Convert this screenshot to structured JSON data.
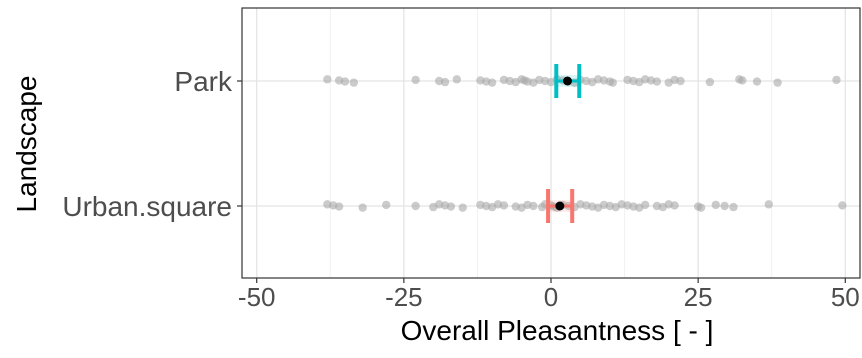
{
  "chart_data": {
    "type": "scatter",
    "xlabel": "Overall Pleasantness [ - ]",
    "ylabel": "Landscape",
    "xlim": [
      -52.5,
      52.5
    ],
    "x_ticks": [
      -50,
      -25,
      0,
      25,
      50
    ],
    "x_tick_labels": [
      "-50",
      "-25",
      "0",
      "25",
      "50"
    ],
    "categories": [
      "Park",
      "Urban.square"
    ],
    "grid": true,
    "series": [
      {
        "category": "Park",
        "color": "#00BFC4",
        "mean": 2.8,
        "ci": [
          0.9,
          4.8
        ],
        "points": [
          -38,
          -36,
          -35,
          -33.5,
          -23,
          -19,
          -18,
          -16,
          -12,
          -11,
          -10,
          -8,
          -7,
          -6,
          -5,
          -4.5,
          -4,
          -3,
          -2,
          -1,
          0,
          1,
          2,
          3,
          4,
          5,
          6,
          7,
          8,
          9,
          10,
          10.5,
          13,
          14,
          15,
          16,
          17,
          18,
          20,
          21,
          22,
          27,
          32,
          32.5,
          35,
          38.5,
          48.5
        ]
      },
      {
        "category": "Urban.square",
        "color": "#F8766D",
        "mean": 1.5,
        "ci": [
          -0.5,
          3.6
        ],
        "points": [
          -38,
          -37,
          -36,
          -32,
          -28,
          -23,
          -20,
          -19,
          -18,
          -17,
          -15,
          -12,
          -11,
          -10,
          -9,
          -8,
          -6,
          -5,
          -4,
          -3,
          -1.5,
          -1,
          0,
          0.5,
          1,
          2,
          3,
          4,
          5,
          6,
          7,
          8,
          9,
          10,
          11,
          12,
          13,
          14,
          15,
          16,
          18,
          19,
          20,
          21,
          25,
          25.5,
          28,
          29.5,
          31,
          37,
          49.5
        ]
      }
    ]
  }
}
